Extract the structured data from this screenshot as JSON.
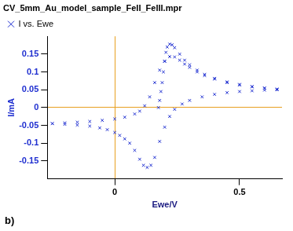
{
  "chart_data": {
    "type": "scatter",
    "title": "CV_5mm_Au_model_sample_FeII_FeIII.mpr",
    "x_label": "Ewe/V",
    "y_label": "I/mA",
    "annotation": "b)",
    "legend": "top-left",
    "xlim": [
      -0.27,
      0.67
    ],
    "xticks": [
      0,
      0.5
    ],
    "ylim": [
      -0.2,
      0.2
    ],
    "yticks": [
      -0.15,
      -0.1,
      -0.05,
      0,
      0.05,
      0.1,
      0.15
    ],
    "series": [
      {
        "name": "I vs. Ewe",
        "color": "#1f2fd0",
        "marker": "x",
        "x": [
          0.175,
          0.18,
          0.185,
          0.19,
          0.195,
          0.2,
          0.205,
          0.21,
          0.22,
          0.23,
          0.24,
          0.26,
          0.28,
          0.3,
          0.33,
          0.36,
          0.4,
          0.45,
          0.5,
          0.55,
          0.6,
          0.65,
          0.65,
          0.6,
          0.55,
          0.5,
          0.45,
          0.4,
          0.35,
          0.3,
          0.27,
          0.24,
          0.22,
          0.2,
          0.18,
          0.16,
          0.145,
          0.13,
          0.115,
          0.1,
          0.08,
          0.06,
          0.04,
          0.02,
          0.0,
          -0.03,
          -0.06,
          -0.1,
          -0.15,
          -0.2,
          -0.25,
          -0.25,
          -0.2,
          -0.15,
          -0.1,
          -0.05,
          0.0,
          0.04,
          0.08,
          0.1,
          0.12,
          0.14,
          0.16,
          0.18,
          0.2,
          0.22,
          0.24,
          0.26,
          0.28,
          0.3,
          0.33,
          0.36,
          0.4,
          0.45,
          0.5,
          0.55,
          0.6,
          0.65
        ],
        "values": [
          0.0,
          0.02,
          0.045,
          0.07,
          0.1,
          0.13,
          0.155,
          0.17,
          0.178,
          0.176,
          0.168,
          0.15,
          0.133,
          0.12,
          0.105,
          0.093,
          0.082,
          0.072,
          0.065,
          0.059,
          0.055,
          0.052,
          0.05,
          0.049,
          0.047,
          0.045,
          0.042,
          0.037,
          0.03,
          0.02,
          0.01,
          -0.005,
          -0.025,
          -0.055,
          -0.095,
          -0.14,
          -0.162,
          -0.168,
          -0.162,
          -0.145,
          -0.12,
          -0.1,
          -0.088,
          -0.078,
          -0.07,
          -0.062,
          -0.057,
          -0.052,
          -0.049,
          -0.047,
          -0.045,
          -0.045,
          -0.043,
          -0.041,
          -0.039,
          -0.036,
          -0.032,
          -0.027,
          -0.018,
          -0.01,
          0.005,
          0.03,
          0.07,
          0.105,
          0.13,
          0.143,
          0.142,
          0.133,
          0.122,
          0.113,
          0.1,
          0.09,
          0.08,
          0.07,
          0.063,
          0.058,
          0.054,
          0.051
        ]
      }
    ]
  }
}
